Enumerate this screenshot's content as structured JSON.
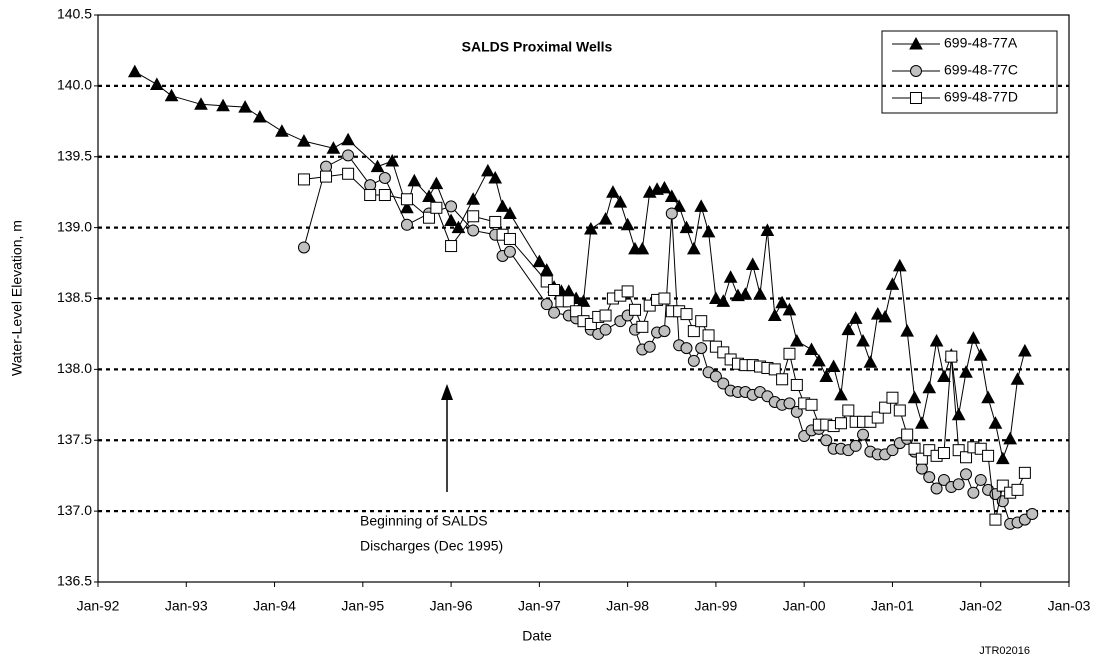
{
  "chart_data": {
    "type": "line",
    "title": "SALDS Proximal Wells",
    "x_label": "Date",
    "y_label": "Water-Level Elevation, m",
    "annotation": [
      "Beginning of SALDS",
      "Discharges (Dec 1995)"
    ],
    "footnote": "JTR02016",
    "xlim": [
      "1992-01",
      "2003-01"
    ],
    "xticks": [
      {
        "value": "1992-01",
        "label": "Jan-92"
      },
      {
        "value": "1993-01",
        "label": "Jan-93"
      },
      {
        "value": "1994-01",
        "label": "Jan-94"
      },
      {
        "value": "1995-01",
        "label": "Jan-95"
      },
      {
        "value": "1996-01",
        "label": "Jan-96"
      },
      {
        "value": "1997-01",
        "label": "Jan-97"
      },
      {
        "value": "1998-01",
        "label": "Jan-98"
      },
      {
        "value": "1999-01",
        "label": "Jan-99"
      },
      {
        "value": "2000-01",
        "label": "Jan-00"
      },
      {
        "value": "2001-01",
        "label": "Jan-01"
      },
      {
        "value": "2002-01",
        "label": "Jan-02"
      },
      {
        "value": "2003-01",
        "label": "Jan-03"
      }
    ],
    "ylim": [
      136.5,
      140.5
    ],
    "yticks": [
      136.5,
      {
        "value": 137,
        "label": "137.0"
      },
      137.5,
      {
        "value": 138,
        "label": "138.0"
      },
      138.5,
      {
        "value": 139,
        "label": "139.0"
      },
      139.5,
      {
        "value": 140,
        "label": "140.0"
      },
      140.5
    ],
    "grid": true,
    "legend": "top-right",
    "series": [
      {
        "name": "699-48-77A",
        "color": "#000000",
        "marker": "triangle",
        "x": [
          "1992-06",
          "1992-09",
          "1992-11",
          "1993-03",
          "1993-06",
          "1993-09",
          "1993-11",
          "1994-02",
          "1994-05",
          "1994-09",
          "1994-11",
          "1995-03",
          "1995-05",
          "1995-07",
          "1995-08",
          "1995-10",
          "1995-11",
          "1996-01",
          "1996-02",
          "1996-04",
          "1996-06",
          "1996-07",
          "1996-08",
          "1996-09",
          "1997-01",
          "1997-02",
          "1997-03",
          "1997-04",
          "1997-05",
          "1997-06",
          "1997-07",
          "1997-08",
          "1997-10",
          "1997-11",
          "1997-12",
          "1998-01",
          "1998-02",
          "1998-03",
          "1998-04",
          "1998-05",
          "1998-06",
          "1998-07",
          "1998-08",
          "1998-09",
          "1998-10",
          "1998-11",
          "1998-12",
          "1999-01",
          "1999-02",
          "1999-03",
          "1999-04",
          "1999-05",
          "1999-06",
          "1999-07",
          "1999-08",
          "1999-09",
          "1999-10",
          "1999-11",
          "1999-12",
          "2000-02",
          "2000-03",
          "2000-04",
          "2000-05",
          "2000-06",
          "2000-07",
          "2000-08",
          "2000-09",
          "2000-10",
          "2000-11",
          "2000-12",
          "2001-01",
          "2001-02",
          "2001-03",
          "2001-04",
          "2001-05",
          "2001-06",
          "2001-07",
          "2001-08",
          "2001-09",
          "2001-10",
          "2001-11",
          "2001-12",
          "2002-01",
          "2002-02",
          "2002-03",
          "2002-04",
          "2002-05",
          "2002-06",
          "2002-07"
        ],
        "values": [
          140.1,
          140.01,
          139.93,
          139.87,
          139.86,
          139.85,
          139.78,
          139.68,
          139.61,
          139.56,
          139.62,
          139.43,
          139.47,
          139.14,
          139.33,
          139.22,
          139.31,
          139.05,
          139.0,
          139.2,
          139.4,
          139.35,
          139.15,
          139.1,
          138.76,
          138.7,
          138.58,
          138.55,
          138.55,
          138.5,
          138.48,
          138.99,
          139.06,
          139.25,
          139.18,
          139.02,
          138.85,
          138.85,
          139.25,
          139.27,
          139.28,
          139.22,
          139.15,
          139.0,
          138.85,
          139.15,
          138.97,
          138.5,
          138.48,
          138.65,
          138.52,
          138.53,
          138.74,
          138.53,
          138.98,
          138.38,
          138.47,
          138.42,
          138.2,
          138.14,
          138.06,
          137.95,
          138.02,
          137.82,
          138.28,
          138.36,
          138.2,
          138.05,
          138.39,
          138.37,
          138.6,
          138.73,
          138.27,
          137.8,
          137.62,
          137.87,
          138.2,
          137.95,
          138.1,
          137.68,
          137.98,
          138.22,
          138.1,
          137.8,
          137.62,
          137.37,
          137.51,
          137.93,
          138.13
        ]
      },
      {
        "name": "699-48-77C",
        "color": "#c0c0c0",
        "marker": "circle",
        "x": [
          "1994-05",
          "1994-08",
          "1994-11",
          "1995-02",
          "1995-04",
          "1995-07",
          "1995-10",
          "1996-01",
          "1996-04",
          "1996-07",
          "1996-08",
          "1996-09",
          "1997-02",
          "1997-03",
          "1997-05",
          "1997-06",
          "1997-08",
          "1997-09",
          "1997-10",
          "1997-12",
          "1998-01",
          "1998-02",
          "1998-03",
          "1998-04",
          "1998-05",
          "1998-06",
          "1998-07",
          "1998-08",
          "1998-09",
          "1998-10",
          "1998-11",
          "1998-12",
          "1999-01",
          "1999-02",
          "1999-03",
          "1999-04",
          "1999-05",
          "1999-06",
          "1999-07",
          "1999-08",
          "1999-09",
          "1999-10",
          "1999-11",
          "1999-12",
          "2000-01",
          "2000-02",
          "2000-03",
          "2000-04",
          "2000-05",
          "2000-06",
          "2000-07",
          "2000-08",
          "2000-09",
          "2000-10",
          "2000-11",
          "2000-12",
          "2001-01",
          "2001-02",
          "2001-03",
          "2001-04",
          "2001-05",
          "2001-06",
          "2001-07",
          "2001-08",
          "2001-09",
          "2001-10",
          "2001-11",
          "2001-12",
          "2002-01",
          "2002-02",
          "2002-03",
          "2002-04",
          "2002-05",
          "2002-06",
          "2002-07",
          "2002-08"
        ],
        "values": [
          138.86,
          139.43,
          139.51,
          139.3,
          139.35,
          139.02,
          139.1,
          139.15,
          138.98,
          138.95,
          138.8,
          138.83,
          138.46,
          138.4,
          138.38,
          138.36,
          138.28,
          138.25,
          138.28,
          138.34,
          138.38,
          138.28,
          138.14,
          138.16,
          138.26,
          138.27,
          139.1,
          138.17,
          138.15,
          138.06,
          138.15,
          137.98,
          137.95,
          137.9,
          137.85,
          137.84,
          137.84,
          137.82,
          137.84,
          137.81,
          137.77,
          137.75,
          137.76,
          137.7,
          137.53,
          137.57,
          137.58,
          137.5,
          137.44,
          137.44,
          137.43,
          137.46,
          137.54,
          137.42,
          137.4,
          137.4,
          137.43,
          137.48,
          137.51,
          137.42,
          137.3,
          137.24,
          137.16,
          137.22,
          137.17,
          137.19,
          137.26,
          137.13,
          137.22,
          137.15,
          137.12,
          137.07,
          136.91,
          136.92,
          136.94,
          136.98
        ]
      },
      {
        "name": "699-48-77D",
        "color": "#ffffff",
        "marker": "square",
        "x": [
          "1994-05",
          "1994-08",
          "1994-11",
          "1995-02",
          "1995-04",
          "1995-07",
          "1995-10",
          "1995-11",
          "1996-01",
          "1996-04",
          "1996-07",
          "1996-08",
          "1996-09",
          "1997-02",
          "1997-03",
          "1997-04",
          "1997-05",
          "1997-06",
          "1997-07",
          "1997-08",
          "1997-09",
          "1997-10",
          "1997-11",
          "1997-12",
          "1998-01",
          "1998-02",
          "1998-03",
          "1998-04",
          "1998-05",
          "1998-06",
          "1998-07",
          "1998-08",
          "1998-09",
          "1998-10",
          "1998-11",
          "1998-12",
          "1999-01",
          "1999-02",
          "1999-03",
          "1999-04",
          "1999-05",
          "1999-06",
          "1999-07",
          "1999-08",
          "1999-09",
          "1999-10",
          "1999-11",
          "1999-12",
          "2000-01",
          "2000-02",
          "2000-03",
          "2000-04",
          "2000-05",
          "2000-06",
          "2000-07",
          "2000-08",
          "2000-09",
          "2000-10",
          "2000-11",
          "2000-12",
          "2001-01",
          "2001-02",
          "2001-03",
          "2001-04",
          "2001-05",
          "2001-06",
          "2001-07",
          "2001-08",
          "2001-09",
          "2001-10",
          "2001-11",
          "2001-12",
          "2002-01",
          "2002-02",
          "2002-03",
          "2002-04",
          "2002-05",
          "2002-06",
          "2002-07"
        ],
        "values": [
          139.34,
          139.36,
          139.38,
          139.23,
          139.23,
          139.2,
          139.07,
          139.14,
          138.87,
          139.08,
          139.04,
          138.95,
          138.92,
          138.62,
          138.56,
          138.48,
          138.48,
          138.41,
          138.34,
          138.32,
          138.37,
          138.38,
          138.5,
          138.52,
          138.55,
          138.42,
          138.3,
          138.45,
          138.49,
          138.5,
          138.41,
          138.41,
          138.39,
          138.27,
          138.34,
          138.24,
          138.16,
          138.12,
          138.07,
          138.04,
          138.03,
          138.03,
          138.02,
          138.01,
          138.0,
          137.93,
          138.11,
          137.89,
          137.76,
          137.75,
          137.61,
          137.61,
          137.6,
          137.62,
          137.71,
          137.63,
          137.63,
          137.63,
          137.66,
          137.73,
          137.8,
          137.71,
          137.54,
          137.44,
          137.37,
          137.43,
          137.39,
          137.41,
          138.09,
          137.43,
          137.38,
          137.45,
          137.44,
          137.39,
          136.94,
          137.18,
          137.13,
          137.15,
          137.27
        ]
      }
    ]
  }
}
